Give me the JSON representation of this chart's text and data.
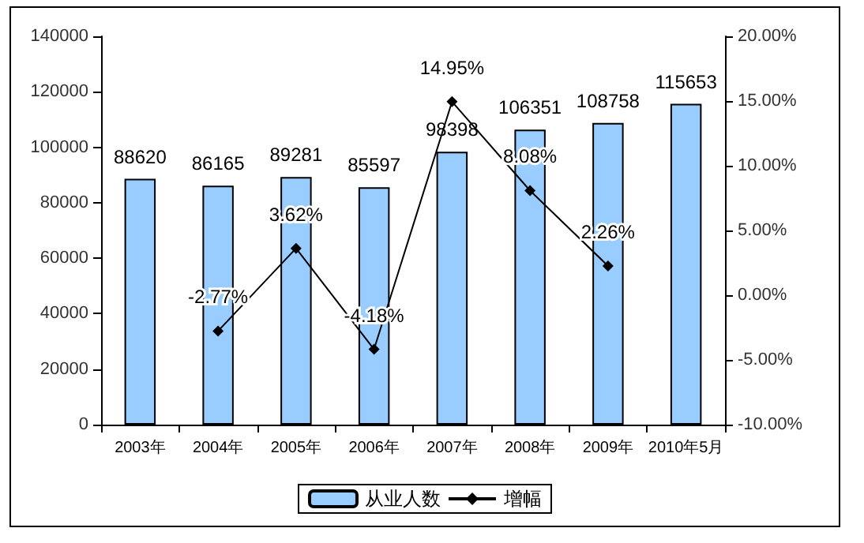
{
  "chart_data": {
    "type": "bar",
    "categories": [
      "2003年",
      "2004年",
      "2005年",
      "2006年",
      "2007年",
      "2008年",
      "2009年",
      "2010年5月"
    ],
    "series": [
      {
        "name": "从业人数",
        "color": "#99ccff",
        "values": [
          88620,
          86165,
          89281,
          85597,
          98398,
          106351,
          108758,
          115653
        ],
        "value_labels": [
          "88620",
          "86165",
          "89281",
          "85597",
          "98398",
          "106351",
          "108758",
          "115653"
        ]
      },
      {
        "name": "增幅",
        "type": "line",
        "axis": "y2",
        "color": "#000000",
        "marker": "diamond",
        "values": [
          null,
          -2.77,
          3.62,
          -4.18,
          14.95,
          8.08,
          2.26,
          null
        ],
        "value_labels": [
          null,
          "-2.77%",
          "3.62%",
          "-4.18%",
          "14.95%",
          "8.08%",
          "2.26%",
          null
        ]
      }
    ],
    "ylim": [
      0,
      140000
    ],
    "yticks": [
      0,
      20000,
      40000,
      60000,
      80000,
      100000,
      120000,
      140000
    ],
    "y2lim": [
      -10,
      20
    ],
    "y2ticks": [
      {
        "value": -10,
        "label": "-10.00%"
      },
      {
        "value": -5,
        "label": "-5.00%"
      },
      {
        "value": 0,
        "label": "0.00%"
      },
      {
        "value": 5,
        "label": "5.00%"
      },
      {
        "value": 10,
        "label": "10.00%"
      },
      {
        "value": 15,
        "label": "15.00%"
      },
      {
        "value": 20,
        "label": "20.00%"
      }
    ],
    "grid": false,
    "legend": "bottom"
  }
}
